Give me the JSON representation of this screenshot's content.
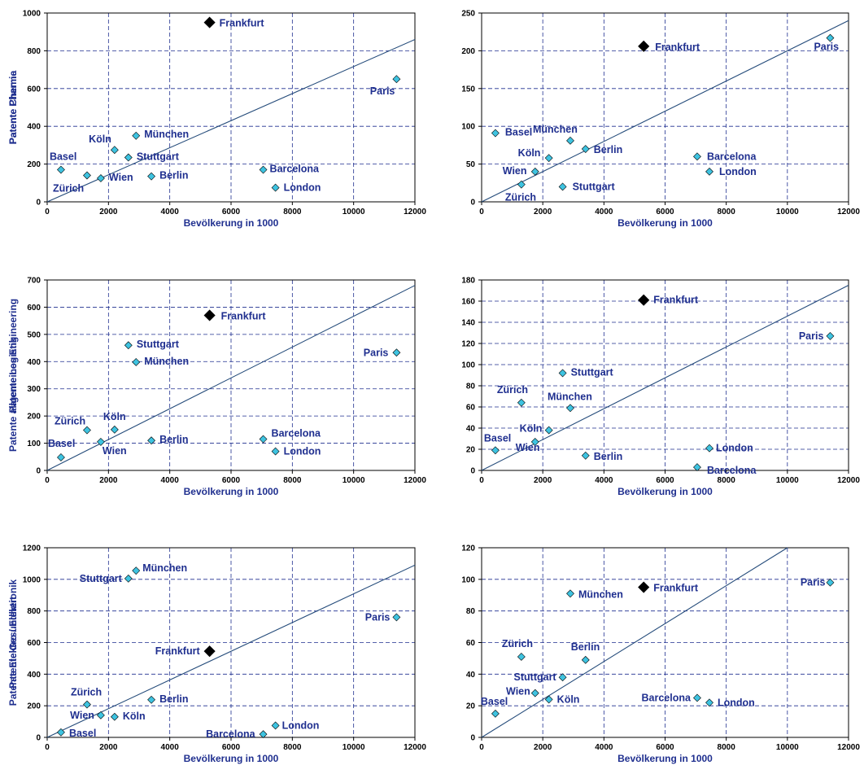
{
  "colors": {
    "city_marker": "#3ec3e0",
    "highlight_marker": "#000000",
    "text": "#1f2f8f",
    "trend_line": "#244b7a"
  },
  "chart_data": [
    {
      "type": "scatter",
      "xlabel": "Bevölkerung in 1000",
      "ylabel": "Patente Chemie",
      "xlim": [
        0,
        12000
      ],
      "ylim": [
        0,
        1000
      ],
      "xticks": [
        0,
        2000,
        4000,
        6000,
        8000,
        10000,
        12000
      ],
      "yticks": [
        0,
        200,
        400,
        600,
        800,
        1000
      ],
      "trend": [
        [
          0,
          0
        ],
        [
          12000,
          860
        ]
      ],
      "points": [
        {
          "name": "Frankfurt",
          "x": 5300,
          "y": 950,
          "highlight": true
        },
        {
          "name": "Paris",
          "x": 11400,
          "y": 650
        },
        {
          "name": "Köln",
          "x": 2200,
          "y": 275
        },
        {
          "name": "München",
          "x": 2900,
          "y": 350
        },
        {
          "name": "Stuttgart",
          "x": 2650,
          "y": 235
        },
        {
          "name": "Basel",
          "x": 450,
          "y": 170
        },
        {
          "name": "Zürich",
          "x": 1300,
          "y": 140
        },
        {
          "name": "Wien",
          "x": 1750,
          "y": 125
        },
        {
          "name": "Berlin",
          "x": 3400,
          "y": 135
        },
        {
          "name": "Barcelona",
          "x": 7050,
          "y": 170
        },
        {
          "name": "London",
          "x": 7450,
          "y": 75
        }
      ]
    },
    {
      "type": "scatter",
      "xlabel": "Bevölkerung in 1000",
      "ylabel": "Patente Pharma",
      "xlim": [
        0,
        12000
      ],
      "ylim": [
        0,
        250
      ],
      "xticks": [
        0,
        2000,
        4000,
        6000,
        8000,
        10000,
        12000
      ],
      "yticks": [
        0,
        50,
        100,
        150,
        200,
        250
      ],
      "trend": [
        [
          0,
          0
        ],
        [
          12000,
          240
        ]
      ],
      "points": [
        {
          "name": "Frankfurt",
          "x": 5300,
          "y": 206,
          "highlight": true
        },
        {
          "name": "Paris",
          "x": 11400,
          "y": 217
        },
        {
          "name": "Basel",
          "x": 450,
          "y": 91
        },
        {
          "name": "München",
          "x": 2900,
          "y": 81
        },
        {
          "name": "Berlin",
          "x": 3400,
          "y": 70
        },
        {
          "name": "Köln",
          "x": 2200,
          "y": 58
        },
        {
          "name": "Wien",
          "x": 1750,
          "y": 40
        },
        {
          "name": "Zürich",
          "x": 1300,
          "y": 23
        },
        {
          "name": "Stuttgart",
          "x": 2650,
          "y": 20
        },
        {
          "name": "Barcelona",
          "x": 7050,
          "y": 60
        },
        {
          "name": "London",
          "x": 7450,
          "y": 40
        }
      ]
    },
    {
      "type": "scatter",
      "xlabel": "Bevölkerung in 1000",
      "ylabel": "Patente allgemeines Engineering",
      "xlim": [
        0,
        12000
      ],
      "ylim": [
        0,
        700
      ],
      "xticks": [
        0,
        2000,
        4000,
        6000,
        8000,
        10000,
        12000
      ],
      "yticks": [
        0,
        100,
        200,
        300,
        400,
        500,
        600,
        700
      ],
      "trend": [
        [
          0,
          0
        ],
        [
          12000,
          680
        ]
      ],
      "points": [
        {
          "name": "Frankfurt",
          "x": 5300,
          "y": 570,
          "highlight": true
        },
        {
          "name": "Paris",
          "x": 11400,
          "y": 433
        },
        {
          "name": "Stuttgart",
          "x": 2650,
          "y": 460
        },
        {
          "name": "München",
          "x": 2900,
          "y": 398
        },
        {
          "name": "Zürich",
          "x": 1300,
          "y": 148
        },
        {
          "name": "Köln",
          "x": 2200,
          "y": 150
        },
        {
          "name": "Wien",
          "x": 1750,
          "y": 105
        },
        {
          "name": "Basel",
          "x": 450,
          "y": 48
        },
        {
          "name": "Berlin",
          "x": 3400,
          "y": 110
        },
        {
          "name": "Barcelona",
          "x": 7050,
          "y": 115
        },
        {
          "name": "London",
          "x": 7450,
          "y": 70
        }
      ]
    },
    {
      "type": "scatter",
      "xlabel": "Bevölkerung in 1000",
      "ylabel": "Patente Logistik",
      "xlim": [
        0,
        12000
      ],
      "ylim": [
        0,
        180
      ],
      "xticks": [
        0,
        2000,
        4000,
        6000,
        8000,
        10000,
        12000
      ],
      "yticks": [
        0,
        20,
        40,
        60,
        80,
        100,
        120,
        140,
        160,
        180
      ],
      "trend": [
        [
          0,
          0
        ],
        [
          12000,
          175
        ]
      ],
      "points": [
        {
          "name": "Frankfurt",
          "x": 5300,
          "y": 161,
          "highlight": true
        },
        {
          "name": "Paris",
          "x": 11400,
          "y": 127
        },
        {
          "name": "Stuttgart",
          "x": 2650,
          "y": 92
        },
        {
          "name": "Zürich",
          "x": 1300,
          "y": 64
        },
        {
          "name": "München",
          "x": 2900,
          "y": 59
        },
        {
          "name": "Köln",
          "x": 2200,
          "y": 38
        },
        {
          "name": "Basel",
          "x": 450,
          "y": 19
        },
        {
          "name": "Wien",
          "x": 1750,
          "y": 27
        },
        {
          "name": "Berlin",
          "x": 3400,
          "y": 14
        },
        {
          "name": "London",
          "x": 7450,
          "y": 21
        },
        {
          "name": "Barcelona",
          "x": 7050,
          "y": 3
        }
      ]
    },
    {
      "type": "scatter",
      "xlabel": "Bevölkerung in 1000",
      "ylabel": "Patente Elektro / Elektronik",
      "xlim": [
        0,
        12000
      ],
      "ylim": [
        0,
        1200
      ],
      "xticks": [
        0,
        2000,
        4000,
        6000,
        8000,
        10000,
        12000
      ],
      "yticks": [
        0,
        200,
        400,
        600,
        800,
        1000,
        1200
      ],
      "trend": [
        [
          0,
          0
        ],
        [
          12000,
          1090
        ]
      ],
      "points": [
        {
          "name": "Frankfurt",
          "x": 5300,
          "y": 545,
          "highlight": true
        },
        {
          "name": "Paris",
          "x": 11400,
          "y": 760
        },
        {
          "name": "München",
          "x": 2900,
          "y": 1055
        },
        {
          "name": "Stuttgart",
          "x": 2650,
          "y": 1005
        },
        {
          "name": "Zürich",
          "x": 1300,
          "y": 208
        },
        {
          "name": "Berlin",
          "x": 3400,
          "y": 238
        },
        {
          "name": "Wien",
          "x": 1750,
          "y": 140
        },
        {
          "name": "Köln",
          "x": 2200,
          "y": 130
        },
        {
          "name": "Basel",
          "x": 450,
          "y": 32
        },
        {
          "name": "London",
          "x": 7450,
          "y": 75
        },
        {
          "name": "Barcelona",
          "x": 7050,
          "y": 20
        }
      ]
    },
    {
      "type": "scatter",
      "xlabel": "Bevölkerung in 1000",
      "ylabel": "Patente Gesundheit",
      "xlim": [
        0,
        12000
      ],
      "ylim": [
        0,
        120
      ],
      "xticks": [
        0,
        2000,
        4000,
        6000,
        8000,
        10000,
        12000
      ],
      "yticks": [
        0,
        20,
        40,
        60,
        80,
        100,
        120
      ],
      "trend": [
        [
          0,
          0
        ],
        [
          10000,
          120
        ]
      ],
      "points": [
        {
          "name": "Frankfurt",
          "x": 5300,
          "y": 95,
          "highlight": true
        },
        {
          "name": "Paris",
          "x": 11400,
          "y": 98
        },
        {
          "name": "München",
          "x": 2900,
          "y": 91
        },
        {
          "name": "Zürich",
          "x": 1300,
          "y": 51
        },
        {
          "name": "Berlin",
          "x": 3400,
          "y": 49
        },
        {
          "name": "Stuttgart",
          "x": 2650,
          "y": 38
        },
        {
          "name": "Wien",
          "x": 1750,
          "y": 28
        },
        {
          "name": "Köln",
          "x": 2200,
          "y": 24
        },
        {
          "name": "Basel",
          "x": 450,
          "y": 15
        },
        {
          "name": "Barcelona",
          "x": 7050,
          "y": 25
        },
        {
          "name": "London",
          "x": 7450,
          "y": 22
        }
      ]
    }
  ]
}
